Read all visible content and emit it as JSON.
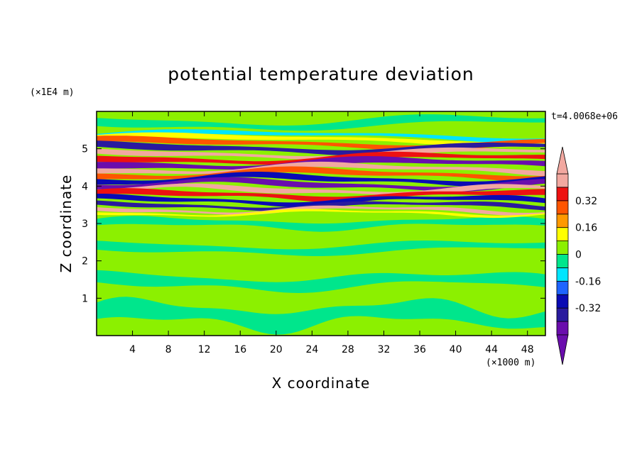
{
  "chart_data": {
    "type": "heatmap",
    "title": "potential temperature deviation",
    "xlabel": "X coordinate",
    "ylabel": "Z coordinate",
    "x_unit": "(×1000 m)",
    "y_unit": "(×1E4 m)",
    "time_label": "t=4.0068e+06",
    "xlim": [
      0,
      50
    ],
    "ylim": [
      0,
      6
    ],
    "x_ticks": [
      4,
      8,
      12,
      16,
      20,
      24,
      28,
      32,
      36,
      40,
      44,
      48
    ],
    "y_ticks": [
      1,
      2,
      3,
      4,
      5
    ],
    "colorbar": {
      "levels": [
        -0.48,
        -0.4,
        -0.32,
        -0.24,
        -0.16,
        -0.08,
        0,
        0.08,
        0.16,
        0.24,
        0.32,
        0.4,
        0.48
      ],
      "colors": [
        "#6a0dad",
        "#2a1a9e",
        "#0a0ab4",
        "#1e64ff",
        "#00e5ff",
        "#00e68c",
        "#8cf000",
        "#ffff00",
        "#ff9900",
        "#ff5500",
        "#ee1111",
        "#f2a8a0"
      ],
      "labels": [
        "0.32",
        "0.16",
        "0",
        "-0.16",
        "-0.32"
      ],
      "label_values": [
        0.32,
        0.16,
        0,
        -0.16,
        -0.32
      ],
      "extend": "both"
    },
    "background_field": "green (near 0) with banded strong positive/negative layers between z≈3.3 and z≈5.3 (×1E4 m)"
  }
}
